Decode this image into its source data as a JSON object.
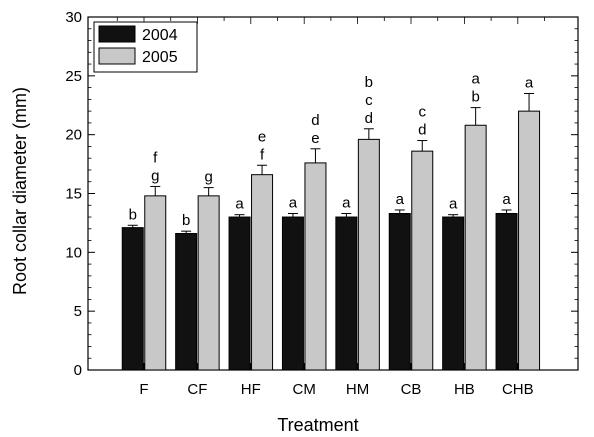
{
  "chart_data": {
    "type": "bar",
    "xlabel": "Treatment",
    "ylabel": "Root collar diameter (mm)",
    "ylim": [
      0,
      30
    ],
    "yticks": [
      "0",
      "5",
      "10",
      "15",
      "20",
      "25",
      "30"
    ],
    "grid": false,
    "legend_position": "top-left",
    "categories": [
      "F",
      "CF",
      "HF",
      "CM",
      "HM",
      "CB",
      "HB",
      "CHB"
    ],
    "series": [
      {
        "name": "2004",
        "color": "#111111",
        "values": [
          12.1,
          11.6,
          13.0,
          13.0,
          13.0,
          13.3,
          13.0,
          13.3
        ],
        "errors": [
          0.2,
          0.2,
          0.2,
          0.3,
          0.3,
          0.3,
          0.2,
          0.3
        ],
        "labels": [
          "b",
          "b",
          "a",
          "a",
          "a",
          "a",
          "a",
          "a"
        ]
      },
      {
        "name": "2005",
        "color": "#c8c8c8",
        "values": [
          14.8,
          14.8,
          16.6,
          17.6,
          19.6,
          18.6,
          20.8,
          22.0
        ],
        "errors": [
          0.8,
          0.7,
          0.8,
          1.2,
          0.9,
          0.9,
          1.5,
          1.5
        ],
        "labels": [
          [
            "f",
            "g"
          ],
          [
            "g"
          ],
          [
            "e",
            "f"
          ],
          [
            "d",
            "e"
          ],
          [
            "b",
            "c",
            "d"
          ],
          [
            "c",
            "d"
          ],
          [
            "a",
            "b"
          ],
          [
            "a"
          ]
        ]
      }
    ]
  }
}
